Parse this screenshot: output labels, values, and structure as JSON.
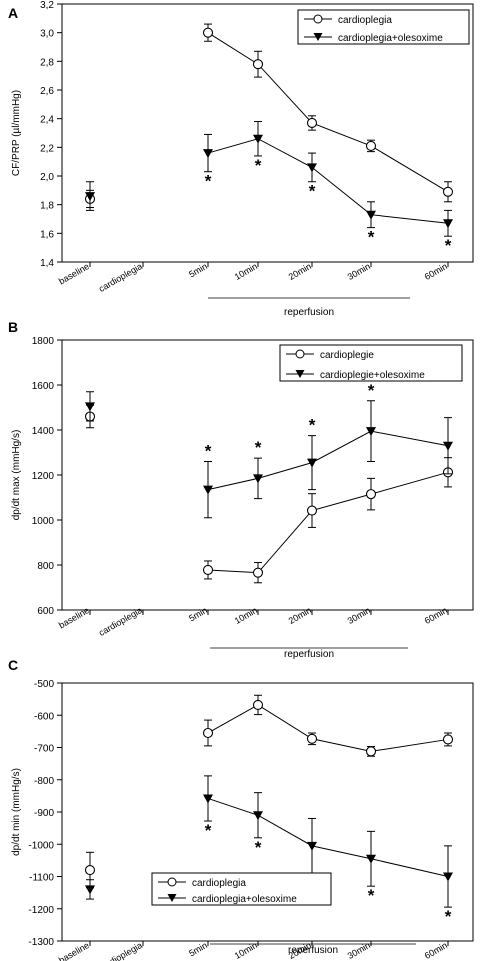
{
  "chart_data": [
    {
      "panel": "A",
      "type": "line",
      "ylabel": "CF/PRP (µl/mmHg)",
      "xlabel": "",
      "categories": [
        "baseline",
        "cardioplegia",
        "5min",
        "10min",
        "20min",
        "30min",
        "60min"
      ],
      "group_label": "reperfusion",
      "ylim": [
        1.4,
        3.2
      ],
      "yticks": [
        "1,4",
        "1,6",
        "1,8",
        "2,0",
        "2,2",
        "2,4",
        "2,6",
        "2,8",
        "3,0",
        "3,2"
      ],
      "legend_position": "top-right",
      "series": [
        {
          "name": "cardioplegia",
          "marker": "open-circle",
          "values": [
            1.84,
            null,
            3.0,
            2.78,
            2.37,
            2.21,
            1.89
          ],
          "errors": [
            0.06,
            null,
            0.06,
            0.09,
            0.05,
            0.04,
            0.07
          ]
        },
        {
          "name": "cardioplegia+olesoxime",
          "marker": "filled-triangle-down",
          "values": [
            1.86,
            null,
            2.16,
            2.26,
            2.06,
            1.73,
            1.67
          ],
          "errors": [
            0.1,
            null,
            0.13,
            0.12,
            0.1,
            0.09,
            0.09
          ]
        }
      ],
      "significance": [
        "",
        "",
        "*",
        "*",
        "*",
        "*",
        "*"
      ]
    },
    {
      "panel": "B",
      "type": "line",
      "ylabel": "dp/dt max (mmHg/s)",
      "xlabel": "",
      "categories": [
        "baseline",
        "cardioplegia",
        "5min",
        "10min",
        "20min",
        "30min",
        "60min"
      ],
      "group_label": "reperfusion",
      "ylim": [
        600,
        1800
      ],
      "yticks": [
        "600",
        "800",
        "1000",
        "1200",
        "1400",
        "1600",
        "1800"
      ],
      "legend_position": "top-right",
      "series": [
        {
          "name": "cardioplegie",
          "marker": "open-circle",
          "values": [
            1460,
            null,
            778,
            766,
            1042,
            1115,
            1212
          ],
          "errors": [
            50,
            null,
            40,
            45,
            75,
            70,
            65
          ]
        },
        {
          "name": "cardioplegie+olesoxime",
          "marker": "filled-triangle-down",
          "values": [
            1505,
            null,
            1135,
            1185,
            1255,
            1395,
            1330
          ],
          "errors": [
            65,
            null,
            125,
            90,
            120,
            135,
            125
          ]
        }
      ],
      "significance": [
        "",
        "",
        "*",
        "*",
        "*",
        "*",
        ""
      ]
    },
    {
      "panel": "C",
      "type": "line",
      "ylabel": "dp/dt min (mmHg/s)",
      "xlabel": "",
      "categories": [
        "baseline",
        "cardioplegia",
        "5min",
        "10min",
        "20min",
        "30min",
        "60min"
      ],
      "group_label": "reperfusion",
      "ylim": [
        -1300,
        -500
      ],
      "yticks": [
        "-1300",
        "-1200",
        "-1100",
        "-1000",
        "-900",
        "-800",
        "-700",
        "-600",
        "-500"
      ],
      "legend_position": "bottom-left",
      "series": [
        {
          "name": "cardioplegia",
          "marker": "open-circle",
          "values": [
            -1080,
            null,
            -655,
            -568,
            -673,
            -712,
            -675
          ],
          "errors": [
            55,
            null,
            40,
            30,
            18,
            15,
            20
          ]
        },
        {
          "name": "cardioplegia+olesoxime",
          "marker": "filled-triangle-down",
          "values": [
            -1140,
            null,
            -858,
            -910,
            -1005,
            -1045,
            -1100
          ],
          "errors": [
            30,
            null,
            70,
            70,
            85,
            85,
            95
          ]
        }
      ],
      "significance": [
        "",
        "",
        "*",
        "*",
        "*",
        "*",
        "*"
      ]
    }
  ]
}
